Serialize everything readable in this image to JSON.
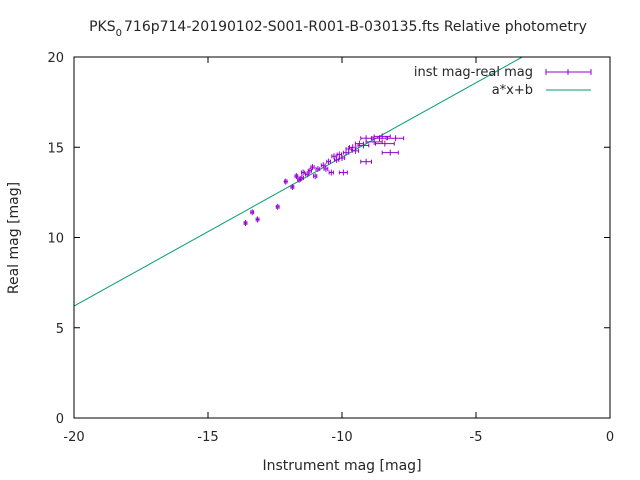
{
  "chart_data": {
    "type": "scatter",
    "title": "PKS",
    "title_subscript": "0",
    "title_rest": "716p714-20190102-S001-R001-B-030135.fts Relative photometry",
    "xlabel": "Instrument mag [mag]",
    "ylabel": "Real mag [mag]",
    "xlim": [
      -20,
      0
    ],
    "ylim": [
      0,
      20
    ],
    "xticks": [
      -20,
      -15,
      -10,
      -5,
      0
    ],
    "xtick_labels": [
      "-20",
      "-15",
      "-10",
      "-5",
      "0"
    ],
    "yticks": [
      0,
      5,
      10,
      15,
      20
    ],
    "ytick_labels": [
      "0",
      "5",
      "10",
      "15",
      "20"
    ],
    "grid": false,
    "legend_position": "top-right",
    "colors": {
      "points": "#9400d3",
      "fit": "#009e73",
      "frame": "#000000"
    },
    "series": [
      {
        "name": "inst mag-real mag",
        "style": "points with x error bars",
        "points": [
          {
            "x": -13.6,
            "y": 10.8,
            "xerr": 0.05
          },
          {
            "x": -13.35,
            "y": 11.4,
            "xerr": 0.05
          },
          {
            "x": -13.15,
            "y": 11.0,
            "xerr": 0.05
          },
          {
            "x": -12.4,
            "y": 11.7,
            "xerr": 0.05
          },
          {
            "x": -12.1,
            "y": 13.1,
            "xerr": 0.05
          },
          {
            "x": -11.85,
            "y": 12.8,
            "xerr": 0.05
          },
          {
            "x": -11.7,
            "y": 13.4,
            "xerr": 0.05
          },
          {
            "x": -11.6,
            "y": 13.2,
            "xerr": 0.05
          },
          {
            "x": -11.5,
            "y": 13.3,
            "xerr": 0.06
          },
          {
            "x": -11.45,
            "y": 13.6,
            "xerr": 0.06
          },
          {
            "x": -11.3,
            "y": 13.5,
            "xerr": 0.06
          },
          {
            "x": -11.2,
            "y": 13.7,
            "xerr": 0.06
          },
          {
            "x": -11.1,
            "y": 13.9,
            "xerr": 0.06
          },
          {
            "x": -11.0,
            "y": 13.4,
            "xerr": 0.06
          },
          {
            "x": -10.9,
            "y": 13.8,
            "xerr": 0.07
          },
          {
            "x": -10.7,
            "y": 14.0,
            "xerr": 0.07
          },
          {
            "x": -10.6,
            "y": 13.8,
            "xerr": 0.07
          },
          {
            "x": -10.5,
            "y": 14.2,
            "xerr": 0.07
          },
          {
            "x": -10.4,
            "y": 13.6,
            "xerr": 0.08
          },
          {
            "x": -10.3,
            "y": 14.5,
            "xerr": 0.08
          },
          {
            "x": -10.2,
            "y": 14.3,
            "xerr": 0.08
          },
          {
            "x": -10.1,
            "y": 14.6,
            "xerr": 0.08
          },
          {
            "x": -10.0,
            "y": 14.4,
            "xerr": 0.1
          },
          {
            "x": -9.95,
            "y": 13.6,
            "xerr": 0.15
          },
          {
            "x": -9.85,
            "y": 14.7,
            "xerr": 0.1
          },
          {
            "x": -9.75,
            "y": 14.9,
            "xerr": 0.1
          },
          {
            "x": -9.6,
            "y": 15.0,
            "xerr": 0.12
          },
          {
            "x": -9.5,
            "y": 14.8,
            "xerr": 0.12
          },
          {
            "x": -9.35,
            "y": 15.2,
            "xerr": 0.15
          },
          {
            "x": -9.2,
            "y": 15.1,
            "xerr": 0.2
          },
          {
            "x": -9.1,
            "y": 15.5,
            "xerr": 0.2
          },
          {
            "x": -9.1,
            "y": 14.2,
            "xerr": 0.2
          },
          {
            "x": -8.8,
            "y": 15.3,
            "xerr": 0.3
          },
          {
            "x": -8.6,
            "y": 15.5,
            "xerr": 0.25
          },
          {
            "x": -8.5,
            "y": 15.6,
            "xerr": 0.3
          },
          {
            "x": -8.4,
            "y": 15.2,
            "xerr": 0.35
          },
          {
            "x": -8.2,
            "y": 14.7,
            "xerr": 0.3
          },
          {
            "x": -8.0,
            "y": 15.5,
            "xerr": 0.3
          }
        ]
      },
      {
        "name": "a*x+b",
        "style": "line",
        "fit": {
          "slope": 0.825,
          "intercept": 22.7
        }
      }
    ]
  }
}
